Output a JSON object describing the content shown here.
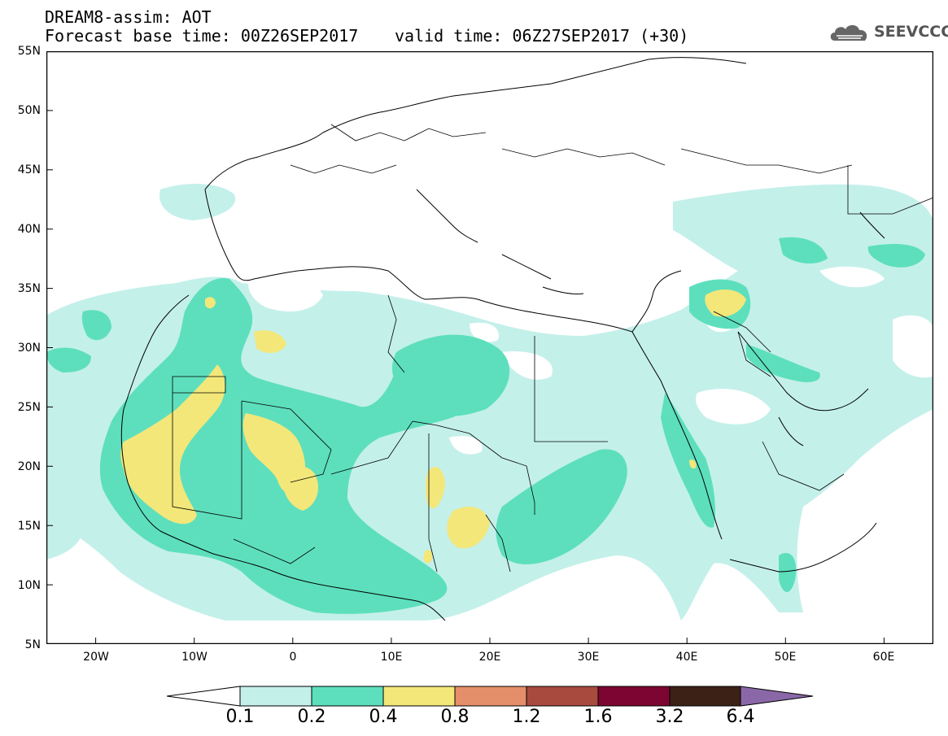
{
  "title": {
    "line1": "DREAM8-assim: AOT",
    "line2": "Forecast base time: 00Z26SEP2017",
    "line3": "valid time: 06Z27SEP2017 (+30)"
  },
  "logo": {
    "text": "SEEVCCC",
    "icon": "cloud-icon"
  },
  "map": {
    "lat_labels": [
      "55N",
      "50N",
      "45N",
      "40N",
      "35N",
      "30N",
      "25N",
      "20N",
      "15N",
      "10N",
      "5N"
    ],
    "lon_labels": [
      "20W",
      "10W",
      "0",
      "10E",
      "20E",
      "30E",
      "40E",
      "50E",
      "60E"
    ],
    "lat_range": [
      5,
      55
    ],
    "lon_range": [
      -25,
      65
    ]
  },
  "colorbar": {
    "labels": [
      "0.1",
      "0.2",
      "0.4",
      "0.8",
      "1.2",
      "1.6",
      "3.2",
      "6.4"
    ],
    "colors": [
      "#ffffff",
      "#c4f0ea",
      "#5ddfbd",
      "#f3e77a",
      "#e58e6a",
      "#a94a3f",
      "#7c0631",
      "#3b2116",
      "#8a68a8"
    ]
  },
  "colors": {
    "level1": "#c4f0ea",
    "level2": "#5ddfbd",
    "level3": "#f3e77a"
  }
}
